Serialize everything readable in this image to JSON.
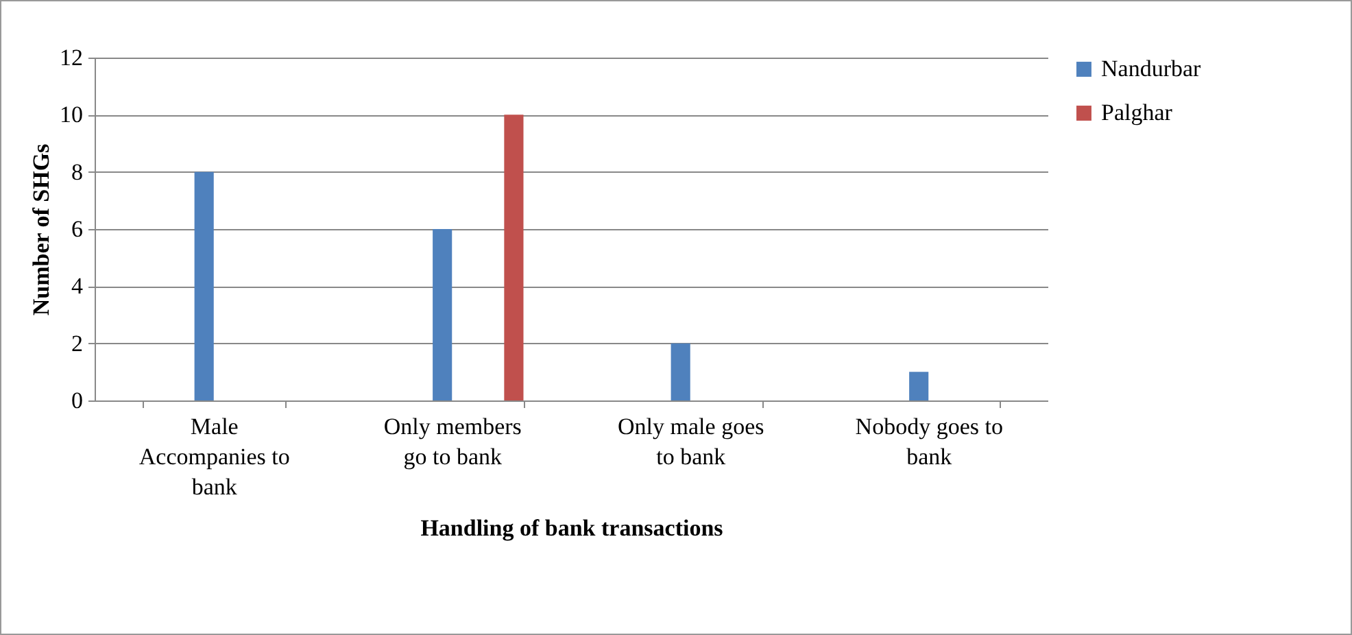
{
  "chart_data": {
    "type": "bar",
    "xlabel": "Handling of bank transactions",
    "ylabel": "Number of SHGs",
    "categories": [
      "Male Accompanies to bank",
      "Only members go to bank",
      "Only male goes to bank",
      "Nobody goes to bank"
    ],
    "series": [
      {
        "name": "Nandurbar",
        "color": "#4f81bd",
        "values": [
          8,
          6,
          2,
          1
        ]
      },
      {
        "name": "Palghar",
        "color": "#c0504d",
        "values": [
          0,
          10,
          0,
          0
        ]
      }
    ],
    "ylim": [
      0,
      12
    ],
    "yticks": [
      0,
      2,
      4,
      6,
      8,
      10,
      12
    ],
    "grid": "y",
    "legend": "right"
  }
}
